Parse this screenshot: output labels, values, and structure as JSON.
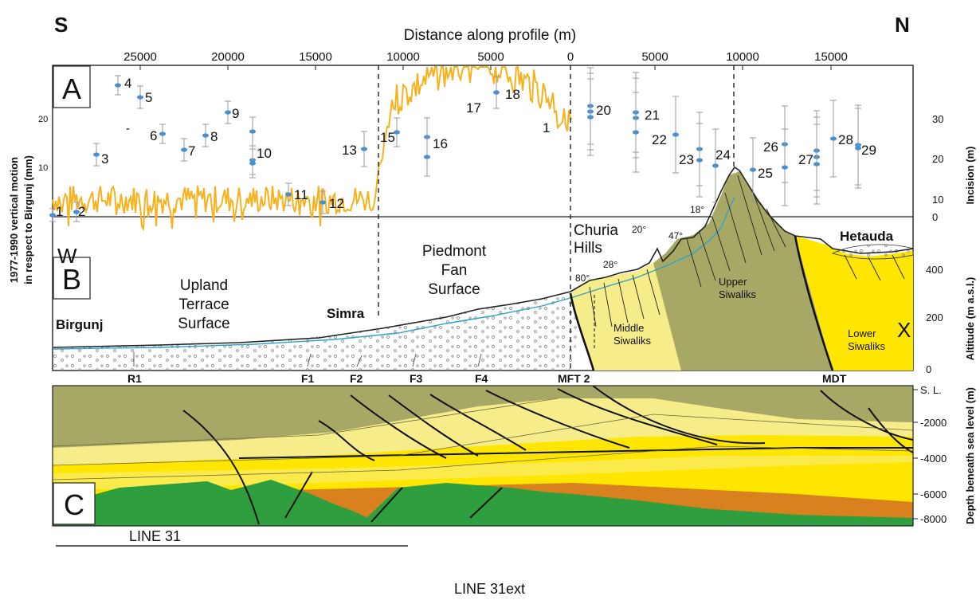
{
  "headings": {
    "south": "S",
    "north": "N"
  },
  "top_axis": {
    "title": "Distance along profile (m)",
    "left_ticks": [
      "25000",
      "20000",
      "15000",
      "10000",
      "5000",
      "0"
    ],
    "right_ticks": [
      "5000",
      "10000",
      "15000"
    ]
  },
  "panel_a": {
    "label": "A",
    "left_axis_title_1": "1977-1990  vertical motion",
    "left_axis_title_2": "in respect to Birgunj (mm)",
    "left_ticks": [
      "20",
      "10"
    ],
    "right_axis_title": "Incision  (m)",
    "right_ticks": [
      "30",
      "20",
      "10",
      "0"
    ],
    "station_labels": [
      "1",
      "2",
      "3",
      "4",
      "5",
      "6",
      "7",
      "8",
      "9",
      "10",
      "11",
      "12",
      "13",
      "15",
      "16",
      "17",
      "18",
      "1",
      "20",
      "21",
      "22",
      "23",
      "24",
      "25",
      "26",
      "27",
      "28",
      "29"
    ],
    "dash_mark": "-"
  },
  "panel_b": {
    "label": "B",
    "sub_label_w": "W",
    "sub_label_x": "X",
    "right_axis_title": "Altitude (m a.s.l.)",
    "right_ticks": [
      "400",
      "200",
      "0"
    ],
    "places": {
      "birgunj": "Birgunj",
      "simra": "Simra",
      "hetauda": "Hetauda",
      "upland_1": "Upland",
      "upland_2": "Terrace",
      "upland_3": "Surface",
      "piedmont_1": "Piedmont",
      "piedmont_2": "Fan",
      "piedmont_3": "Surface",
      "churia_1": "Churia",
      "churia_2": "Hills"
    },
    "units": {
      "middle_1": "Middle",
      "middle_2": "Siwaliks",
      "upper_1": "Upper",
      "upper_2": "Siwaliks",
      "lower_1": "Lower",
      "lower_2": "Siwaliks"
    },
    "dips": [
      "80°",
      "28°",
      "20°",
      "47°",
      "18°"
    ],
    "faults": [
      "R1",
      "F1",
      "F2",
      "F3",
      "F4",
      "MFT 2",
      "MDT"
    ]
  },
  "panel_c": {
    "label": "C",
    "right_axis_title": "Depth beneath sea level (m)",
    "right_ticks": [
      "S. L.",
      "-2000",
      "-4000",
      "-6000",
      "-8000"
    ]
  },
  "lines": {
    "line31": "LINE 31",
    "line31ext": "LINE 31ext"
  },
  "colors": {
    "incision": "#F5B21E",
    "gps_point": "#4A8FD0",
    "river": "#2EA3C7",
    "upper_siwaliks": "#A8A866",
    "middle_siwaliks": "#F7EC8A",
    "lower_siwaliks": "#FFE600",
    "basement_orange": "#D9801F",
    "basement_green": "#2E9E3E"
  }
}
